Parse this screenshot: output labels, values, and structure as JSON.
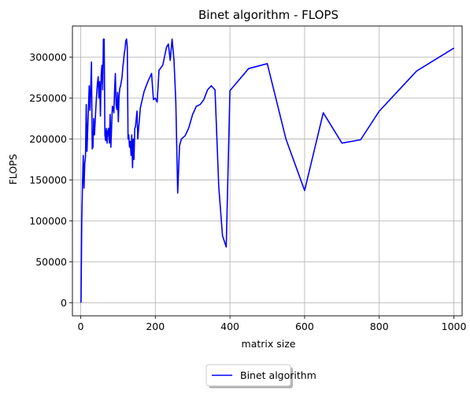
{
  "chart_data": {
    "type": "line",
    "title": "Binet algorithm - FLOPS",
    "xlabel": "matrix size",
    "ylabel": "FLOPS",
    "xlim": [
      -22,
      1022
    ],
    "ylim": [
      -16000,
      338000
    ],
    "xticks": [
      0,
      200,
      400,
      600,
      800,
      1000
    ],
    "yticks": [
      0,
      50000,
      100000,
      150000,
      200000,
      250000,
      300000
    ],
    "grid": true,
    "legend_position": "bottom-center",
    "series": [
      {
        "name": "Binet algorithm",
        "color": "#0000ff",
        "x": [
          1,
          3,
          5,
          7,
          9,
          11,
          13,
          15,
          17,
          19,
          21,
          23,
          25,
          27,
          29,
          31,
          33,
          35,
          37,
          39,
          41,
          43,
          45,
          47,
          49,
          51,
          53,
          55,
          57,
          59,
          61,
          63,
          65,
          67,
          69,
          71,
          73,
          75,
          77,
          79,
          81,
          83,
          85,
          87,
          89,
          91,
          93,
          95,
          97,
          99,
          101,
          103,
          105,
          107,
          109,
          111,
          113,
          115,
          117,
          119,
          121,
          123,
          125,
          127,
          129,
          131,
          133,
          135,
          137,
          139,
          141,
          143,
          145,
          147,
          149,
          151,
          153,
          160,
          170,
          180,
          190,
          195,
          200,
          205,
          210,
          220,
          230,
          235,
          240,
          245,
          250,
          255,
          260,
          265,
          270,
          280,
          290,
          300,
          310,
          320,
          330,
          340,
          350,
          360,
          370,
          380,
          390,
          400,
          450,
          500,
          550,
          600,
          650,
          700,
          750,
          800,
          900,
          1000
        ],
        "values": [
          0,
          100000,
          145000,
          180000,
          140000,
          170000,
          178000,
          242000,
          185000,
          212000,
          240000,
          265000,
          235000,
          262000,
          294000,
          188000,
          190000,
          225000,
          205000,
          222000,
          240000,
          255000,
          268000,
          276000,
          250000,
          270000,
          228000,
          278000,
          290000,
          260000,
          322000,
          322000,
          205000,
          198000,
          213000,
          195000,
          210000,
          213000,
          195000,
          230000,
          190000,
          215000,
          240000,
          238000,
          232000,
          260000,
          280000,
          242000,
          236000,
          257000,
          221000,
          253000,
          262000,
          265000,
          270000,
          276000,
          288000,
          295000,
          305000,
          310000,
          320000,
          322000,
          312000,
          200000,
          205000,
          190000,
          197000,
          180000,
          205000,
          165000,
          200000,
          175000,
          213000,
          215000,
          225000,
          234000,
          200000,
          238000,
          258000,
          270000,
          280000,
          248000,
          250000,
          245000,
          284000,
          290000,
          312000,
          316000,
          296000,
          322000,
          297000,
          245000,
          134000,
          192000,
          200000,
          204000,
          214000,
          230000,
          240000,
          242000,
          248000,
          260000,
          265000,
          260000,
          142000,
          82000,
          68000,
          259000,
          286000,
          292000,
          200000,
          137000,
          232000,
          195000,
          199000,
          234000,
          283000,
          311000
        ]
      }
    ]
  }
}
